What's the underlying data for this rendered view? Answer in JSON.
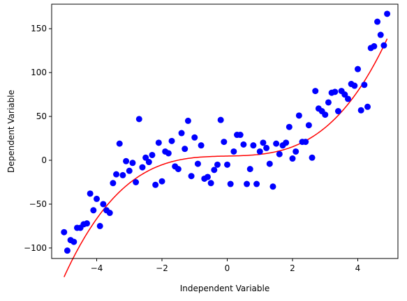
{
  "chart_data": {
    "type": "scatter",
    "xlabel": "Independent Variable",
    "ylabel": "Dependent Variable",
    "xlim": [
      -5.38,
      5.23
    ],
    "ylim": [
      -112,
      178
    ],
    "xticks": [
      -4,
      -2,
      0,
      2,
      4
    ],
    "xtick_labels": [
      "−4",
      "−2",
      "0",
      "2",
      "4"
    ],
    "yticks": [
      -100,
      -50,
      0,
      50,
      100,
      150
    ],
    "ytick_labels": [
      "−100",
      "−50",
      "0",
      "50",
      "100",
      "150"
    ],
    "grid": false,
    "legend": "none",
    "series": [
      {
        "type": "scatter",
        "color": "#0000ff",
        "points": [
          [
            -5.0,
            -82
          ],
          [
            -4.9,
            -103
          ],
          [
            -4.8,
            -91
          ],
          [
            -4.7,
            -93
          ],
          [
            -4.6,
            -77
          ],
          [
            -4.5,
            -77
          ],
          [
            -4.4,
            -73
          ],
          [
            -4.3,
            -72
          ],
          [
            -4.2,
            -38
          ],
          [
            -4.1,
            -57
          ],
          [
            -4.0,
            -44
          ],
          [
            -3.9,
            -75
          ],
          [
            -3.8,
            -50
          ],
          [
            -3.7,
            -57
          ],
          [
            -3.6,
            -60
          ],
          [
            -3.5,
            -26
          ],
          [
            -3.4,
            -16
          ],
          [
            -3.3,
            19
          ],
          [
            -3.2,
            -17
          ],
          [
            -3.1,
            -1
          ],
          [
            -3.0,
            -12
          ],
          [
            -2.9,
            -3
          ],
          [
            -2.8,
            -25
          ],
          [
            -2.7,
            47
          ],
          [
            -2.6,
            -8
          ],
          [
            -2.5,
            3
          ],
          [
            -2.4,
            -2
          ],
          [
            -2.3,
            6
          ],
          [
            -2.2,
            -28
          ],
          [
            -2.1,
            20
          ],
          [
            -2.0,
            -24
          ],
          [
            -1.9,
            10
          ],
          [
            -1.8,
            8
          ],
          [
            -1.7,
            22
          ],
          [
            -1.6,
            -7
          ],
          [
            -1.5,
            -10
          ],
          [
            -1.4,
            31
          ],
          [
            -1.3,
            13
          ],
          [
            -1.2,
            45
          ],
          [
            -1.1,
            -18
          ],
          [
            -1.0,
            26
          ],
          [
            -0.9,
            -4
          ],
          [
            -0.8,
            17
          ],
          [
            -0.7,
            -21
          ],
          [
            -0.6,
            -19
          ],
          [
            -0.5,
            -26
          ],
          [
            -0.4,
            -11
          ],
          [
            -0.3,
            -5
          ],
          [
            -0.2,
            46
          ],
          [
            -0.1,
            21
          ],
          [
            0.0,
            -5
          ],
          [
            0.1,
            -27
          ],
          [
            0.2,
            10
          ],
          [
            0.3,
            29
          ],
          [
            0.4,
            29
          ],
          [
            0.5,
            18
          ],
          [
            0.6,
            -27
          ],
          [
            0.7,
            -10
          ],
          [
            0.8,
            17
          ],
          [
            0.9,
            -27
          ],
          [
            1.0,
            10
          ],
          [
            1.1,
            20
          ],
          [
            1.2,
            14
          ],
          [
            1.3,
            -4
          ],
          [
            1.4,
            -30
          ],
          [
            1.5,
            19
          ],
          [
            1.6,
            7
          ],
          [
            1.7,
            17
          ],
          [
            1.8,
            20
          ],
          [
            1.9,
            38
          ],
          [
            2.0,
            2
          ],
          [
            2.1,
            10
          ],
          [
            2.2,
            51
          ],
          [
            2.3,
            21
          ],
          [
            2.4,
            21
          ],
          [
            2.5,
            40
          ],
          [
            2.6,
            3
          ],
          [
            2.7,
            79
          ],
          [
            2.8,
            59
          ],
          [
            2.9,
            56
          ],
          [
            3.0,
            52
          ],
          [
            3.1,
            66
          ],
          [
            3.2,
            77
          ],
          [
            3.3,
            78
          ],
          [
            3.4,
            56
          ],
          [
            3.5,
            79
          ],
          [
            3.6,
            75
          ],
          [
            3.7,
            70
          ],
          [
            3.8,
            87
          ],
          [
            3.9,
            85
          ],
          [
            4.0,
            104
          ],
          [
            4.1,
            57
          ],
          [
            4.2,
            86
          ],
          [
            4.3,
            61
          ],
          [
            4.4,
            128
          ],
          [
            4.5,
            130
          ],
          [
            4.6,
            158
          ],
          [
            4.7,
            143
          ],
          [
            4.8,
            131
          ],
          [
            4.9,
            167
          ]
        ]
      },
      {
        "type": "line",
        "color": "#ff0000",
        "fit": "cubic",
        "coefficients": [
          1.088,
          0.081,
          0.78,
          4.81
        ],
        "x_range": [
          -5.0,
          4.9
        ]
      }
    ]
  }
}
